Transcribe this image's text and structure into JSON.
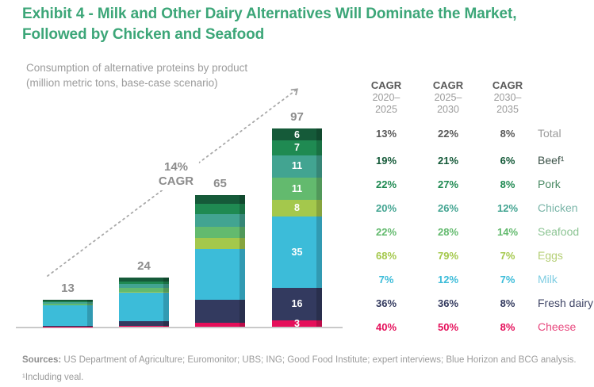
{
  "header": {
    "title": "Exhibit 4 - Milk and Other Dairy Alternatives Will Dominate the Market, Followed by Chicken and Seafood"
  },
  "chart": {
    "subtitle_line1": "Consumption of alternative proteins by product",
    "subtitle_line2": "(million metric tons, base-case scenario)",
    "annotation": {
      "value": "14%",
      "label": "CAGR"
    }
  },
  "chart_data": {
    "type": "stacked-bar",
    "title": "Consumption of alternative proteins by product (million metric tons, base-case scenario)",
    "x_axis_labels_visible": false,
    "periods_implied": [
      "2020",
      "2025",
      "2030",
      "2035"
    ],
    "bar_totals": [
      13,
      24,
      65,
      97
    ],
    "stack_order_top_to_bottom": [
      "Beef",
      "Pork",
      "Chicken",
      "Seafood",
      "Eggs",
      "Milk",
      "Fresh dairy",
      "Cheese"
    ],
    "series": [
      {
        "name": "Beef",
        "color": "#155a39",
        "values": [
          0.65,
          1.7,
          4.5,
          6
        ],
        "visible_labels": [
          null,
          null,
          null,
          6
        ]
      },
      {
        "name": "Pork",
        "color": "#1f8a52",
        "values": [
          0.55,
          1.5,
          5.0,
          7
        ],
        "visible_labels": [
          null,
          null,
          null,
          7
        ]
      },
      {
        "name": "Chicken",
        "color": "#42a491",
        "values": [
          0.75,
          1.9,
          6.0,
          11
        ],
        "visible_labels": [
          null,
          null,
          null,
          11
        ]
      },
      {
        "name": "Seafood",
        "color": "#63ba6e",
        "values": [
          0.65,
          1.8,
          5.5,
          11
        ],
        "visible_labels": [
          null,
          null,
          null,
          11
        ]
      },
      {
        "name": "Eggs",
        "color": "#a4c84c",
        "values": [
          0.05,
          0.3,
          5.5,
          8
        ],
        "visible_labels": [
          null,
          null,
          null,
          8
        ]
      },
      {
        "name": "Milk",
        "color": "#3cbcd9",
        "values": [
          10.0,
          14.2,
          25.0,
          35
        ],
        "visible_labels": [
          null,
          null,
          null,
          35
        ]
      },
      {
        "name": "Fresh dairy",
        "color": "#333a5f",
        "values": [
          0.5,
          2.4,
          11.0,
          16
        ],
        "visible_labels": [
          null,
          null,
          null,
          16
        ]
      },
      {
        "name": "Cheese",
        "color": "#e50f5a",
        "values": [
          0.05,
          0.2,
          2.0,
          3
        ],
        "visible_labels": [
          null,
          null,
          null,
          3
        ]
      }
    ],
    "annotation": "14% CAGR",
    "trend_arrow": true,
    "grid": false,
    "legend_position": "right-table-labels"
  },
  "table": {
    "headers": [
      [
        "CAGR",
        "2020–",
        "2025"
      ],
      [
        "CAGR",
        "2025–",
        "2030"
      ],
      [
        "CAGR",
        "2030–",
        "2035"
      ]
    ],
    "rows": [
      {
        "label": "Total",
        "values": [
          "13%",
          "22%",
          "8%"
        ],
        "value_color": "#595959",
        "label_color": "#9b9b9b"
      },
      {
        "label": "Beef¹",
        "values": [
          "19%",
          "21%",
          "6%"
        ],
        "value_color": "#155a39",
        "label_color": "#3c5349"
      },
      {
        "label": "Pork",
        "values": [
          "22%",
          "27%",
          "8%"
        ],
        "value_color": "#1f8a52",
        "label_color": "#4a8a64"
      },
      {
        "label": "Chicken",
        "values": [
          "20%",
          "26%",
          "12%"
        ],
        "value_color": "#42a491",
        "label_color": "#7ab5a8"
      },
      {
        "label": "Seafood",
        "values": [
          "22%",
          "28%",
          "14%"
        ],
        "value_color": "#63ba6e",
        "label_color": "#8cc493"
      },
      {
        "label": "Eggs",
        "values": [
          "68%",
          "79%",
          "7%"
        ],
        "value_color": "#a4c84c",
        "label_color": "#b5cf76"
      },
      {
        "label": "Milk",
        "values": [
          "7%",
          "12%",
          "7%"
        ],
        "value_color": "#3cbcd9",
        "label_color": "#7fcde2"
      },
      {
        "label": "Fresh dairy",
        "values": [
          "36%",
          "36%",
          "8%"
        ],
        "value_color": "#333a5f",
        "label_color": "#3f4566"
      },
      {
        "label": "Cheese",
        "values": [
          "40%",
          "50%",
          "8%"
        ],
        "value_color": "#e50f5a",
        "label_color": "#e8487e"
      }
    ]
  },
  "footer": {
    "sources_label": "Sources:",
    "sources_text": " US Department of Agriculture; Euromonitor; UBS; ING; Good Food Institute; expert interviews; Blue Horizon and BCG analysis.",
    "footnote": "¹Including veal."
  },
  "colors": {
    "accent_green": "#3ca678",
    "beef": "#155a39",
    "pork": "#1f8a52",
    "chicken": "#42a491",
    "seafood": "#63ba6e",
    "eggs": "#a4c84c",
    "milk": "#3cbcd9",
    "fresh_dairy": "#333a5f",
    "cheese": "#e50f5a",
    "muted_text": "#9b9b9b"
  }
}
